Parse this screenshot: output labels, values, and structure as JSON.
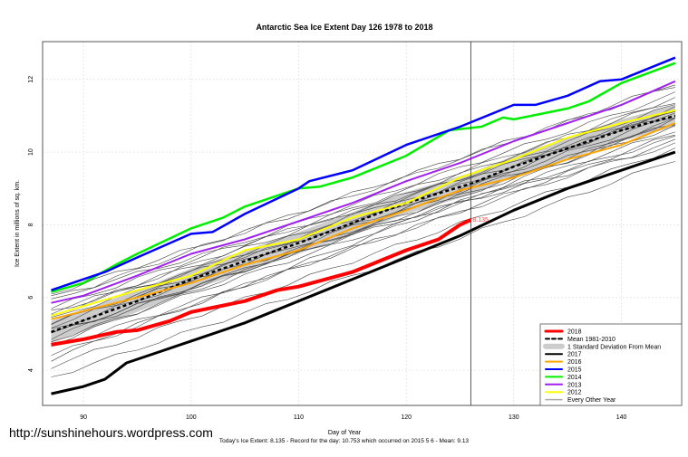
{
  "chart_data": {
    "type": "line",
    "title": "Antarctic Sea Ice Extent Day 126 1978 to 2018",
    "xlabel": "Day of Year",
    "ylabel": "Ice Extent in millions of sq. km.",
    "xlim": [
      86.2,
      145.6
    ],
    "ylim": [
      3.03,
      13.04
    ],
    "xticks": [
      90,
      100,
      110,
      120,
      130,
      140
    ],
    "yticks": [
      4,
      6,
      8,
      10,
      12
    ],
    "grid": true,
    "vline_day": 126,
    "marker_label": "8.135",
    "legend_position": "bottom-right",
    "sd_band": {
      "name": "1 Standard Deviation From Mean",
      "half_width": 0.3,
      "color": "#cccccc"
    },
    "mean": {
      "name": "Mean 1981-2010",
      "color": "#000000",
      "points": [
        [
          87,
          5.05
        ],
        [
          95,
          5.9
        ],
        [
          100,
          6.5
        ],
        [
          110,
          7.5
        ],
        [
          120,
          8.6
        ],
        [
          126,
          9.13
        ],
        [
          130,
          9.6
        ],
        [
          140,
          10.6
        ],
        [
          145,
          11.0
        ]
      ]
    },
    "series": [
      {
        "name": "2018",
        "color": "#ff0000",
        "width": 4,
        "points": [
          [
            87,
            4.7
          ],
          [
            90,
            4.85
          ],
          [
            93,
            5.05
          ],
          [
            95,
            5.1
          ],
          [
            98,
            5.35
          ],
          [
            100,
            5.6
          ],
          [
            105,
            5.9
          ],
          [
            108,
            6.2
          ],
          [
            110,
            6.3
          ],
          [
            115,
            6.7
          ],
          [
            120,
            7.3
          ],
          [
            123,
            7.6
          ],
          [
            125,
            8.0
          ],
          [
            126,
            8.135
          ]
        ]
      },
      {
        "name": "2017",
        "color": "#000000",
        "width": 3,
        "points": [
          [
            87,
            3.35
          ],
          [
            90,
            3.55
          ],
          [
            92,
            3.75
          ],
          [
            94,
            4.2
          ],
          [
            97,
            4.5
          ],
          [
            100,
            4.8
          ],
          [
            105,
            5.3
          ],
          [
            110,
            5.9
          ],
          [
            115,
            6.5
          ],
          [
            120,
            7.1
          ],
          [
            125,
            7.7
          ],
          [
            130,
            8.4
          ],
          [
            135,
            9.0
          ],
          [
            140,
            9.5
          ],
          [
            145,
            10.0
          ]
        ]
      },
      {
        "name": "2016",
        "color": "#ffa500",
        "width": 2,
        "points": [
          [
            87,
            5.4
          ],
          [
            95,
            6.0
          ],
          [
            100,
            6.4
          ],
          [
            105,
            6.9
          ],
          [
            110,
            7.3
          ],
          [
            115,
            7.9
          ],
          [
            120,
            8.4
          ],
          [
            125,
            8.95
          ],
          [
            130,
            9.3
          ],
          [
            135,
            9.8
          ],
          [
            140,
            10.2
          ],
          [
            145,
            10.8
          ]
        ]
      },
      {
        "name": "2015",
        "color": "#0000ff",
        "width": 2.5,
        "points": [
          [
            87,
            6.2
          ],
          [
            90,
            6.5
          ],
          [
            92,
            6.7
          ],
          [
            95,
            7.1
          ],
          [
            100,
            7.75
          ],
          [
            102,
            7.8
          ],
          [
            105,
            8.3
          ],
          [
            110,
            9.0
          ],
          [
            111,
            9.2
          ],
          [
            115,
            9.5
          ],
          [
            120,
            10.2
          ],
          [
            125,
            10.7
          ],
          [
            130,
            11.3
          ],
          [
            132,
            11.3
          ],
          [
            135,
            11.55
          ],
          [
            138,
            11.95
          ],
          [
            140,
            12.0
          ],
          [
            145,
            12.6
          ]
        ]
      },
      {
        "name": "2014",
        "color": "#00ee00",
        "width": 2.5,
        "points": [
          [
            87,
            6.15
          ],
          [
            90,
            6.4
          ],
          [
            93,
            6.9
          ],
          [
            95,
            7.2
          ],
          [
            100,
            7.9
          ],
          [
            103,
            8.2
          ],
          [
            105,
            8.5
          ],
          [
            110,
            9.0
          ],
          [
            112,
            9.05
          ],
          [
            115,
            9.3
          ],
          [
            120,
            9.9
          ],
          [
            124,
            10.6
          ],
          [
            127,
            10.7
          ],
          [
            129,
            10.95
          ],
          [
            130,
            10.9
          ],
          [
            135,
            11.2
          ],
          [
            137,
            11.4
          ],
          [
            140,
            11.9
          ],
          [
            145,
            12.45
          ]
        ]
      },
      {
        "name": "2013",
        "color": "#a020f0",
        "width": 2,
        "points": [
          [
            87,
            5.85
          ],
          [
            90,
            6.05
          ],
          [
            95,
            6.6
          ],
          [
            100,
            7.2
          ],
          [
            105,
            7.6
          ],
          [
            110,
            8.1
          ],
          [
            115,
            8.6
          ],
          [
            120,
            9.2
          ],
          [
            125,
            9.7
          ],
          [
            130,
            10.3
          ],
          [
            135,
            10.8
          ],
          [
            140,
            11.3
          ],
          [
            145,
            11.95
          ]
        ]
      },
      {
        "name": "2012",
        "color": "#ffff00",
        "width": 2,
        "points": [
          [
            87,
            5.5
          ],
          [
            95,
            6.2
          ],
          [
            100,
            6.6
          ],
          [
            105,
            7.3
          ],
          [
            110,
            7.6
          ],
          [
            115,
            8.2
          ],
          [
            120,
            8.6
          ],
          [
            125,
            9.3
          ],
          [
            130,
            9.8
          ],
          [
            135,
            10.4
          ],
          [
            140,
            10.8
          ],
          [
            145,
            11.15
          ]
        ]
      }
    ],
    "other_years": {
      "name": "Every Other Year",
      "color": "#444444",
      "lines": [
        [
          3.8,
          9.8
        ],
        [
          4.1,
          10.1
        ],
        [
          4.4,
          10.3
        ],
        [
          4.6,
          10.5
        ],
        [
          4.8,
          10.6
        ],
        [
          4.9,
          10.7
        ],
        [
          5.0,
          10.9
        ],
        [
          5.1,
          11.0
        ],
        [
          5.2,
          11.1
        ],
        [
          5.3,
          11.2
        ],
        [
          5.4,
          11.3
        ],
        [
          5.5,
          11.4
        ],
        [
          5.6,
          11.5
        ],
        [
          5.7,
          11.6
        ],
        [
          5.9,
          11.8
        ],
        [
          6.1,
          11.9
        ],
        [
          4.3,
          10.9
        ],
        [
          5.0,
          10.4
        ],
        [
          5.6,
          10.8
        ],
        [
          4.7,
          11.2
        ],
        [
          5.3,
          10.2
        ],
        [
          6.0,
          11.1
        ]
      ]
    }
  },
  "watermark": "http://sunshinehours.wordpress.com",
  "footer": "Today's Ice Extent: 8.135  - Record for the day: 10.753 which occurred on 2015 5 6  - Mean: 9.13"
}
